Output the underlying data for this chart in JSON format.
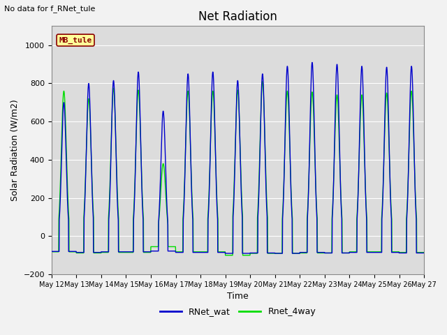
{
  "title": "Net Radiation",
  "xlabel": "Time",
  "ylabel": "Solar Radiation (W/m2)",
  "top_left_text": "No data for f_RNet_tule",
  "annotation_box_text": "MB_tule",
  "annotation_box_color": "#ffff99",
  "annotation_box_edge_color": "#8B0000",
  "annotation_box_text_color": "#8B0000",
  "ylim": [
    -200,
    1100
  ],
  "yticks": [
    -200,
    0,
    200,
    400,
    600,
    800,
    1000
  ],
  "n_days": 15,
  "line1_color": "#0000cc",
  "line2_color": "#00dd00",
  "line1_label": "RNet_wat",
  "line2_label": "Rnet_4way",
  "background_color": "#dcdcdc",
  "grid_color": "#ffffff",
  "title_fontsize": 12,
  "axis_fontsize": 9,
  "tick_fontsize": 8,
  "legend_fontsize": 9,
  "peaks_blue": [
    700,
    800,
    815,
    860,
    655,
    850,
    860,
    815,
    850,
    890,
    910,
    900,
    890,
    885,
    890
  ],
  "peaks_green": [
    760,
    720,
    775,
    765,
    380,
    760,
    760,
    765,
    810,
    760,
    755,
    740,
    740,
    750,
    760
  ],
  "night_blue": [
    -80,
    -85,
    -82,
    -82,
    -78,
    -85,
    -85,
    -90,
    -88,
    -90,
    -85,
    -88,
    -85,
    -85,
    -88
  ],
  "night_green": [
    -82,
    -88,
    -85,
    -85,
    -55,
    -82,
    -82,
    -100,
    -90,
    -90,
    -88,
    -88,
    -82,
    -82,
    -85
  ]
}
